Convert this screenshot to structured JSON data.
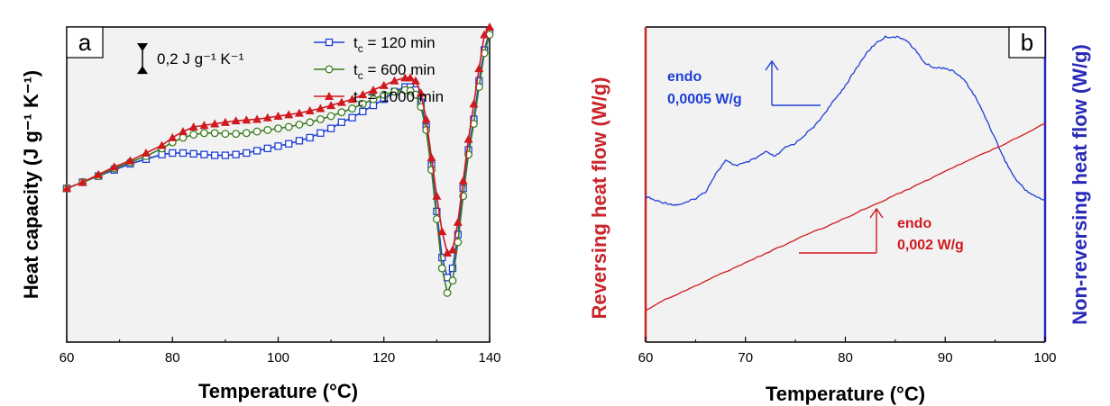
{
  "colors": {
    "blue": "#1f3fd6",
    "green": "#3a7d1e",
    "red": "#d0191f",
    "blue_axis": "#2a2ab8",
    "red_axis": "#c8262b",
    "plot_bg": "#f2f2f2"
  },
  "chart_data": [
    {
      "type": "line",
      "panel": "a",
      "xlabel": "Temperature (°C)",
      "ylabel": "Heat capacity (J g⁻¹ K⁻¹)",
      "xlim": [
        60,
        140
      ],
      "ylim": [
        -1.0,
        1.05
      ],
      "xticks": [
        60,
        80,
        100,
        120,
        140
      ],
      "scale_bar": {
        "label": "0,2 J g⁻¹ K⁻¹",
        "value": 0.2
      },
      "legend_position": "top-right",
      "series": [
        {
          "name": "tc = 120 min",
          "color_key": "blue",
          "marker": "square",
          "x": [
            60,
            63,
            66,
            69,
            72,
            75,
            78,
            80,
            82,
            84,
            86,
            88,
            90,
            92,
            94,
            96,
            98,
            100,
            102,
            104,
            106,
            108,
            110,
            112,
            114,
            116,
            118,
            120,
            122,
            124,
            125,
            126,
            127,
            128,
            129,
            130,
            131,
            132,
            133,
            134,
            135,
            136,
            137,
            138,
            139,
            140
          ],
          "y": [
            0.0,
            0.04,
            0.08,
            0.12,
            0.16,
            0.19,
            0.22,
            0.23,
            0.23,
            0.225,
            0.22,
            0.215,
            0.215,
            0.22,
            0.23,
            0.245,
            0.26,
            0.275,
            0.29,
            0.31,
            0.33,
            0.36,
            0.39,
            0.43,
            0.46,
            0.5,
            0.54,
            0.58,
            0.63,
            0.66,
            0.66,
            0.64,
            0.56,
            0.4,
            0.15,
            -0.15,
            -0.45,
            -0.58,
            -0.52,
            -0.3,
            0.0,
            0.25,
            0.45,
            0.7,
            0.9,
            1.02
          ]
        },
        {
          "name": "tc = 600 min",
          "color_key": "green",
          "marker": "circle",
          "x": [
            60,
            63,
            66,
            69,
            72,
            75,
            78,
            80,
            82,
            84,
            86,
            88,
            90,
            92,
            94,
            96,
            98,
            100,
            102,
            104,
            106,
            108,
            110,
            112,
            114,
            116,
            118,
            120,
            122,
            124,
            125,
            126,
            127,
            128,
            129,
            130,
            131,
            132,
            133,
            134,
            135,
            136,
            137,
            138,
            139,
            140
          ],
          "y": [
            0.0,
            0.04,
            0.08,
            0.13,
            0.17,
            0.21,
            0.26,
            0.3,
            0.33,
            0.35,
            0.36,
            0.36,
            0.355,
            0.355,
            0.36,
            0.37,
            0.38,
            0.39,
            0.4,
            0.415,
            0.43,
            0.45,
            0.47,
            0.495,
            0.52,
            0.55,
            0.58,
            0.61,
            0.63,
            0.64,
            0.635,
            0.61,
            0.53,
            0.38,
            0.12,
            -0.2,
            -0.52,
            -0.68,
            -0.6,
            -0.35,
            -0.05,
            0.22,
            0.42,
            0.66,
            0.88,
            1.0
          ]
        },
        {
          "name": "tc = 1000 min",
          "color_key": "red",
          "marker": "triangle",
          "x": [
            60,
            63,
            66,
            69,
            72,
            75,
            78,
            80,
            82,
            84,
            86,
            88,
            90,
            92,
            94,
            96,
            98,
            100,
            102,
            104,
            106,
            108,
            110,
            112,
            114,
            116,
            118,
            120,
            122,
            124,
            125,
            126,
            127,
            128,
            129,
            130,
            131,
            132,
            133,
            134,
            135,
            136,
            137,
            138,
            139,
            140
          ],
          "y": [
            0.0,
            0.04,
            0.09,
            0.14,
            0.18,
            0.23,
            0.28,
            0.33,
            0.37,
            0.4,
            0.41,
            0.42,
            0.43,
            0.44,
            0.445,
            0.45,
            0.46,
            0.47,
            0.48,
            0.49,
            0.505,
            0.52,
            0.54,
            0.56,
            0.58,
            0.61,
            0.64,
            0.67,
            0.7,
            0.72,
            0.72,
            0.7,
            0.62,
            0.45,
            0.2,
            -0.05,
            -0.28,
            -0.42,
            -0.4,
            -0.22,
            0.05,
            0.32,
            0.55,
            0.78,
            1.0,
            1.05
          ]
        }
      ]
    },
    {
      "type": "line",
      "panel": "b",
      "xlabel": "Temperature (°C)",
      "ylabel_left": "Reversing heat flow (W/g)",
      "ylabel_right": "Non-reversing heat flow (W/g)",
      "xlim": [
        60,
        100
      ],
      "xticks": [
        60,
        70,
        80,
        90,
        100
      ],
      "annotations": [
        {
          "text_line1": "endo",
          "text_line2": "0,0005 W/g",
          "color_key": "blue"
        },
        {
          "text_line1": "endo",
          "text_line2": "0,002 W/g",
          "color_key": "red"
        }
      ],
      "series": [
        {
          "name": "non-reversing heat flow",
          "axis": "right",
          "color_key": "blue",
          "x": [
            60,
            61,
            62,
            63,
            64,
            65,
            66,
            67,
            68,
            69,
            70,
            71,
            72,
            73,
            74,
            75,
            76,
            77,
            78,
            79,
            80,
            81,
            82,
            83,
            84,
            85,
            86,
            87,
            88,
            89,
            90,
            91,
            92,
            93,
            94,
            95,
            96,
            97,
            98,
            99,
            100
          ],
          "y": [
            0.28,
            0.26,
            0.25,
            0.24,
            0.25,
            0.27,
            0.3,
            0.38,
            0.44,
            0.42,
            0.43,
            0.45,
            0.48,
            0.46,
            0.5,
            0.52,
            0.56,
            0.6,
            0.66,
            0.72,
            0.78,
            0.85,
            0.92,
            0.97,
            1.0,
            1.0,
            0.99,
            0.94,
            0.88,
            0.86,
            0.86,
            0.84,
            0.8,
            0.73,
            0.64,
            0.54,
            0.44,
            0.36,
            0.31,
            0.28,
            0.26
          ]
        },
        {
          "name": "reversing heat flow",
          "axis": "left",
          "color_key": "red",
          "x": [
            60,
            62,
            64,
            66,
            68,
            70,
            72,
            74,
            76,
            78,
            80,
            82,
            84,
            86,
            88,
            90,
            92,
            94,
            96,
            98,
            100
          ],
          "y": [
            0.0,
            0.055,
            0.1,
            0.145,
            0.19,
            0.235,
            0.28,
            0.325,
            0.37,
            0.41,
            0.455,
            0.5,
            0.545,
            0.59,
            0.635,
            0.685,
            0.73,
            0.775,
            0.82,
            0.87,
            0.92
          ]
        }
      ]
    }
  ]
}
